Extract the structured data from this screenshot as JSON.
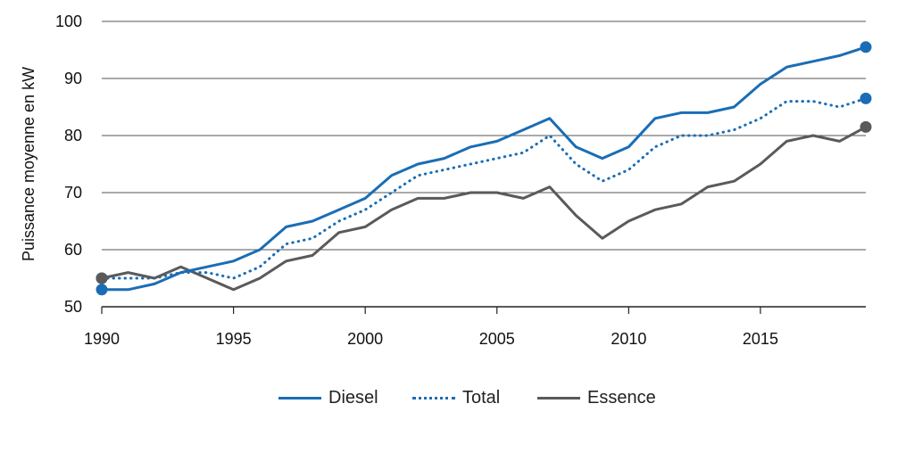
{
  "chart_data": {
    "type": "line",
    "title": "",
    "xlabel": "",
    "ylabel": "Puissance moyenne en kW",
    "xlim": [
      1990,
      2019
    ],
    "ylim": [
      50,
      100
    ],
    "xticks": [
      "1990",
      "1995",
      "2000",
      "2005",
      "2010",
      "2015"
    ],
    "yticks": [
      "50",
      "60",
      "70",
      "80",
      "90",
      "100"
    ],
    "grid": true,
    "legend_position": "bottom",
    "x": [
      1990,
      1991,
      1992,
      1993,
      1994,
      1995,
      1996,
      1997,
      1998,
      1999,
      2000,
      2001,
      2002,
      2003,
      2004,
      2005,
      2006,
      2007,
      2008,
      2009,
      2010,
      2011,
      2012,
      2013,
      2014,
      2015,
      2016,
      2017,
      2018,
      2019
    ],
    "series": [
      {
        "name": "Diesel",
        "color": "#1a6db5",
        "style": "solid",
        "values": [
          53,
          53,
          54,
          56,
          57,
          58,
          60,
          64,
          65,
          67,
          69,
          73,
          75,
          76,
          78,
          79,
          81,
          83,
          78,
          76,
          78,
          83,
          84,
          84,
          85,
          89,
          92,
          93,
          94,
          95.5
        ]
      },
      {
        "name": "Total",
        "color": "#1a6db5",
        "style": "dotted",
        "values": [
          55,
          55,
          55,
          56,
          56,
          55,
          57,
          61,
          62,
          65,
          67,
          70,
          73,
          74,
          75,
          76,
          77,
          80,
          75,
          72,
          74,
          78,
          80,
          80,
          81,
          83,
          86,
          86,
          85,
          86.5
        ]
      },
      {
        "name": "Essence",
        "color": "#5a5a5a",
        "style": "solid",
        "values": [
          55,
          56,
          55,
          57,
          55,
          53,
          55,
          58,
          59,
          63,
          64,
          67,
          69,
          69,
          70,
          70,
          69,
          71,
          66,
          62,
          65,
          67,
          68,
          71,
          72,
          75,
          79,
          80,
          79,
          81.5
        ]
      }
    ]
  }
}
